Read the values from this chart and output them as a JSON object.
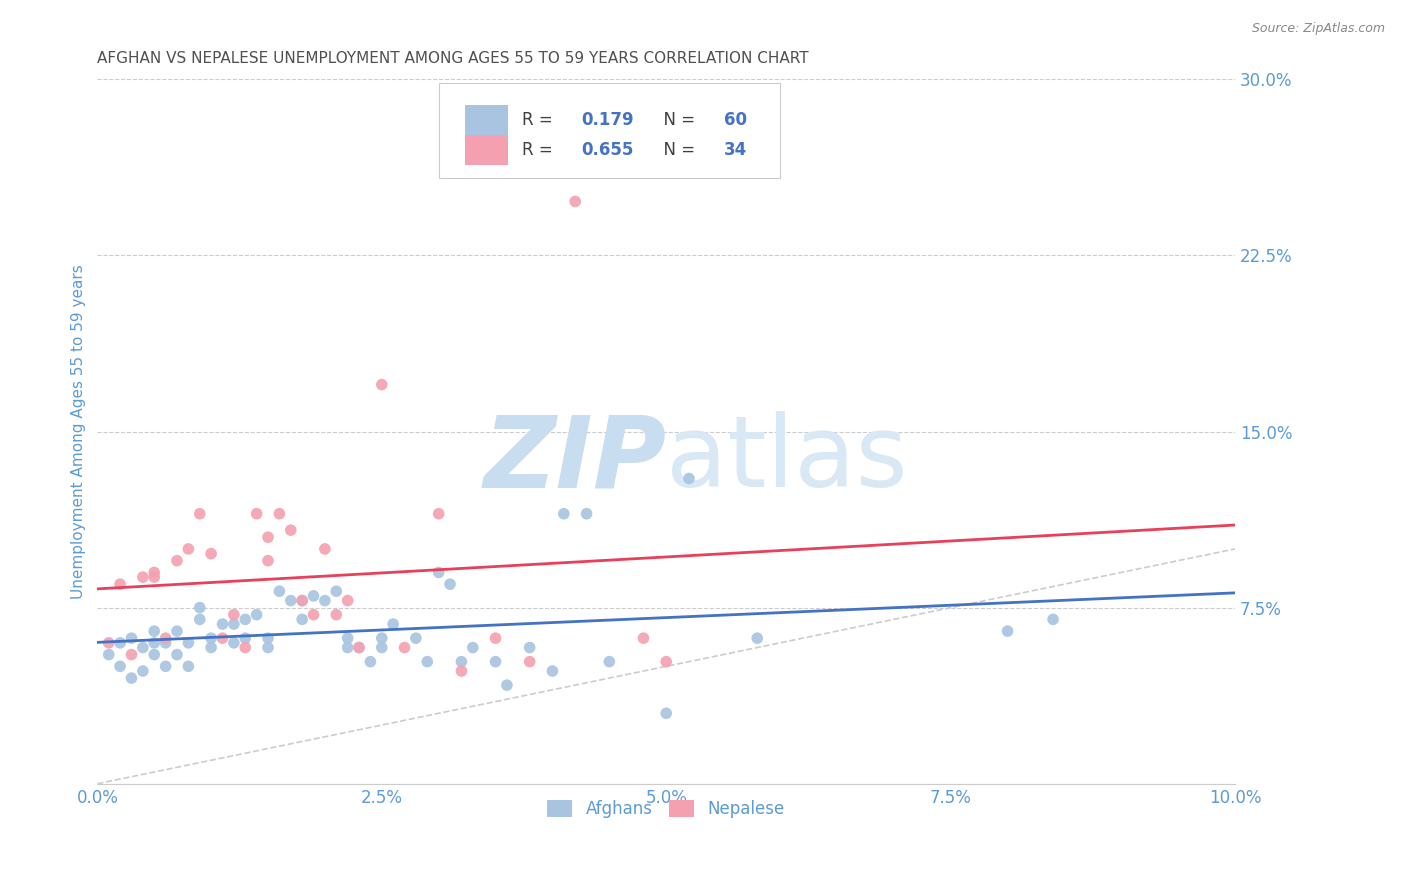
{
  "title": "AFGHAN VS NEPALESE UNEMPLOYMENT AMONG AGES 55 TO 59 YEARS CORRELATION CHART",
  "source": "Source: ZipAtlas.com",
  "ylabel": "Unemployment Among Ages 55 to 59 years",
  "xlim": [
    0.0,
    0.1
  ],
  "ylim": [
    0.0,
    0.3
  ],
  "afghan_R": 0.179,
  "afghan_N": 60,
  "nepalese_R": 0.655,
  "nepalese_N": 34,
  "afghan_color": "#a8c4e0",
  "nepalese_color": "#f4a0b0",
  "afghan_line_color": "#4472c4",
  "nepalese_line_color": "#e8405a",
  "diagonal_color": "#cccccc",
  "title_color": "#505050",
  "axis_label_color": "#5b9bd5",
  "tick_color": "#5b9bd5",
  "grid_color": "#cccccc",
  "watermark_zip_color": "#c8ddf0",
  "watermark_atlas_color": "#d8e8f5",
  "legend_label_afghan": "Afghans",
  "legend_label_nepalese": "Nepalese",
  "afghan_scatter_x": [
    0.001,
    0.002,
    0.002,
    0.003,
    0.003,
    0.004,
    0.004,
    0.005,
    0.005,
    0.005,
    0.006,
    0.006,
    0.007,
    0.007,
    0.008,
    0.008,
    0.009,
    0.009,
    0.01,
    0.01,
    0.011,
    0.012,
    0.012,
    0.013,
    0.013,
    0.014,
    0.015,
    0.015,
    0.016,
    0.017,
    0.018,
    0.018,
    0.019,
    0.02,
    0.021,
    0.022,
    0.022,
    0.023,
    0.024,
    0.025,
    0.025,
    0.026,
    0.028,
    0.029,
    0.03,
    0.031,
    0.032,
    0.033,
    0.035,
    0.036,
    0.038,
    0.04,
    0.041,
    0.043,
    0.045,
    0.05,
    0.052,
    0.058,
    0.08,
    0.084
  ],
  "afghan_scatter_y": [
    0.055,
    0.06,
    0.05,
    0.062,
    0.045,
    0.058,
    0.048,
    0.055,
    0.06,
    0.065,
    0.05,
    0.06,
    0.055,
    0.065,
    0.06,
    0.05,
    0.07,
    0.075,
    0.058,
    0.062,
    0.068,
    0.06,
    0.068,
    0.062,
    0.07,
    0.072,
    0.058,
    0.062,
    0.082,
    0.078,
    0.07,
    0.078,
    0.08,
    0.078,
    0.082,
    0.058,
    0.062,
    0.058,
    0.052,
    0.058,
    0.062,
    0.068,
    0.062,
    0.052,
    0.09,
    0.085,
    0.052,
    0.058,
    0.052,
    0.042,
    0.058,
    0.048,
    0.115,
    0.115,
    0.052,
    0.03,
    0.13,
    0.062,
    0.065,
    0.07
  ],
  "nepalese_scatter_x": [
    0.001,
    0.002,
    0.003,
    0.004,
    0.005,
    0.005,
    0.006,
    0.007,
    0.008,
    0.009,
    0.01,
    0.011,
    0.012,
    0.013,
    0.014,
    0.015,
    0.015,
    0.016,
    0.017,
    0.018,
    0.019,
    0.02,
    0.021,
    0.022,
    0.023,
    0.025,
    0.027,
    0.03,
    0.032,
    0.035,
    0.038,
    0.042,
    0.048,
    0.05
  ],
  "nepalese_scatter_y": [
    0.06,
    0.085,
    0.055,
    0.088,
    0.09,
    0.088,
    0.062,
    0.095,
    0.1,
    0.115,
    0.098,
    0.062,
    0.072,
    0.058,
    0.115,
    0.105,
    0.095,
    0.115,
    0.108,
    0.078,
    0.072,
    0.1,
    0.072,
    0.078,
    0.058,
    0.17,
    0.058,
    0.115,
    0.048,
    0.062,
    0.052,
    0.248,
    0.062,
    0.052
  ]
}
